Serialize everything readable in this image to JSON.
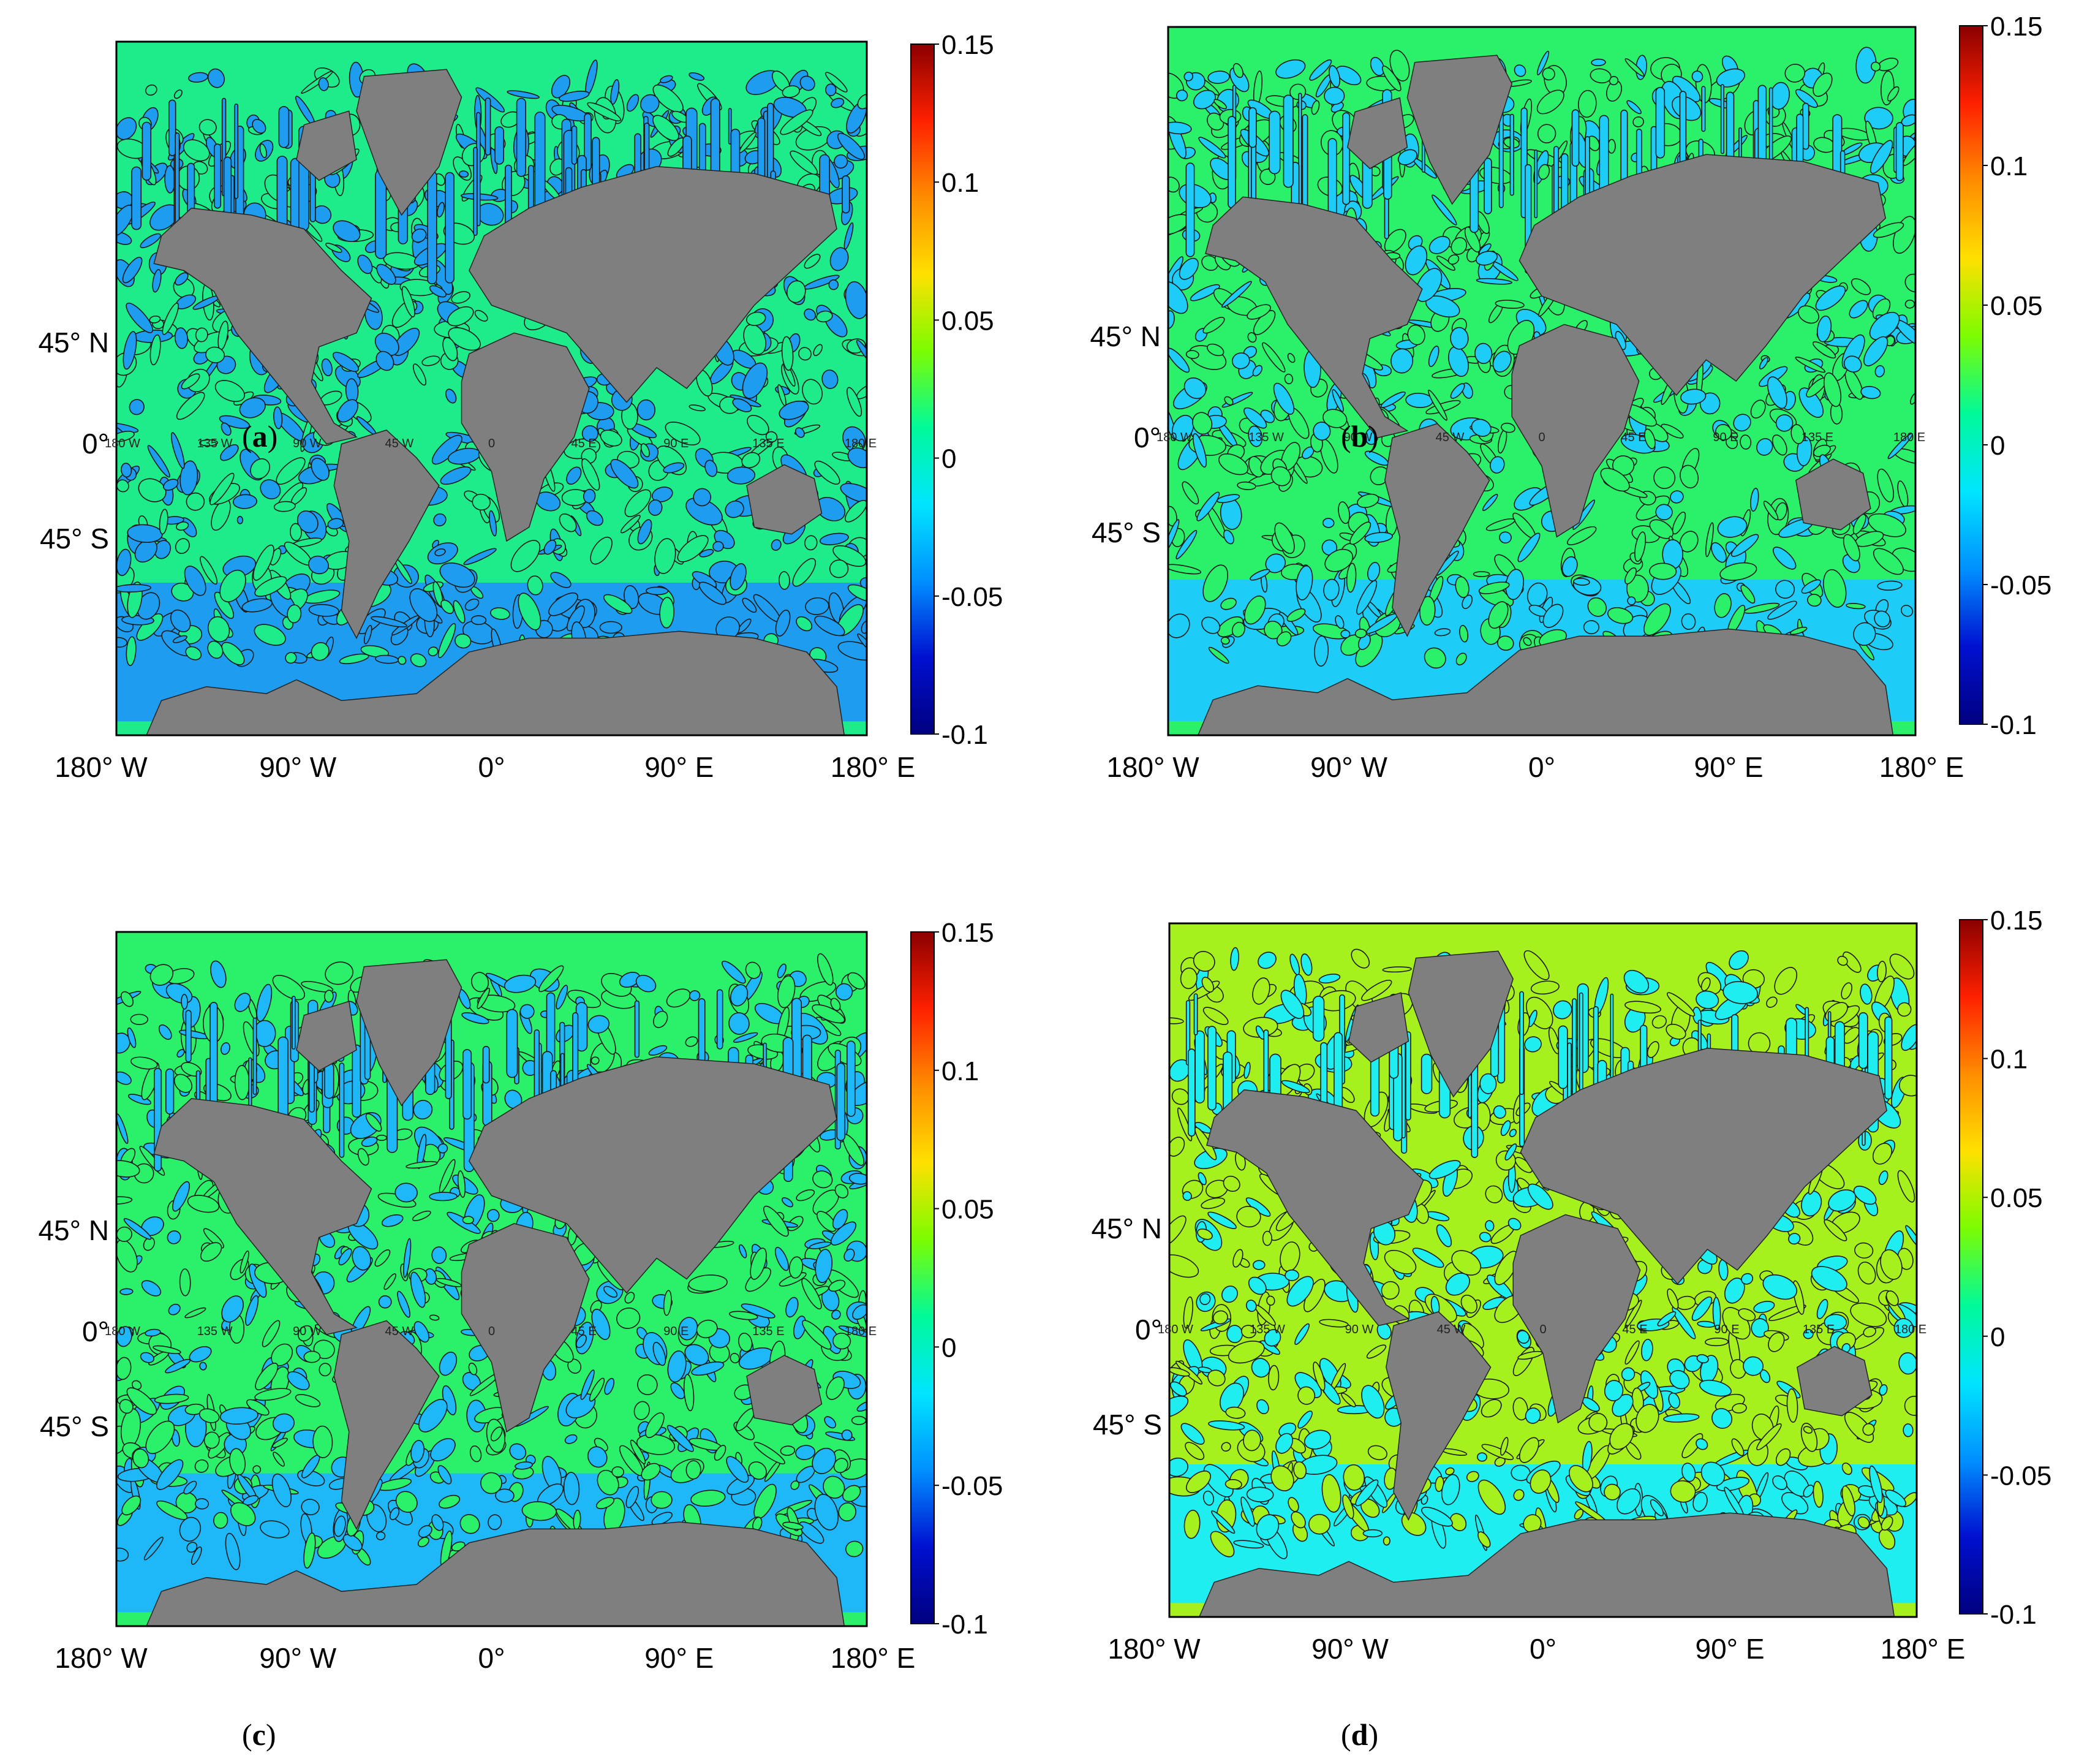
{
  "figure": {
    "panels": [
      {
        "id": "a",
        "caption_label": "a",
        "palette": [
          "#1EEB8A",
          "#1E9CF0"
        ]
      },
      {
        "id": "b",
        "caption_label": "b",
        "palette": [
          "#2AF06A",
          "#1ECCF8"
        ]
      },
      {
        "id": "c",
        "caption_label": "c",
        "palette": [
          "#2AF06A",
          "#1EB8F8"
        ]
      },
      {
        "id": "d",
        "caption_label": "d",
        "palette": [
          "#A6F01E",
          "#1EEEF0"
        ]
      }
    ],
    "axes": {
      "x_ticks": [
        "180° W",
        "90° W",
        "0°",
        "90° E",
        "180° E"
      ],
      "y_ticks": [
        "45° N",
        "0°",
        "45° S"
      ],
      "equator_labels": [
        "180 W",
        "135 W",
        "90 W",
        "45 W",
        "0",
        "45 E",
        "90 E",
        "135 E",
        "180 E"
      ]
    },
    "colorbar": {
      "ticks": [
        "0.15",
        "0.1",
        "0.05",
        "0",
        "-0.05",
        "-0.1"
      ],
      "colors": [
        "#8B0000",
        "#FF2000",
        "#FF8C00",
        "#FFE000",
        "#7CFC00",
        "#00FA9A",
        "#00E5FF",
        "#0090FF",
        "#0010D0",
        "#00007F"
      ]
    },
    "land_color": "#7F7F7F",
    "contour_color": "#1a1a1a"
  }
}
